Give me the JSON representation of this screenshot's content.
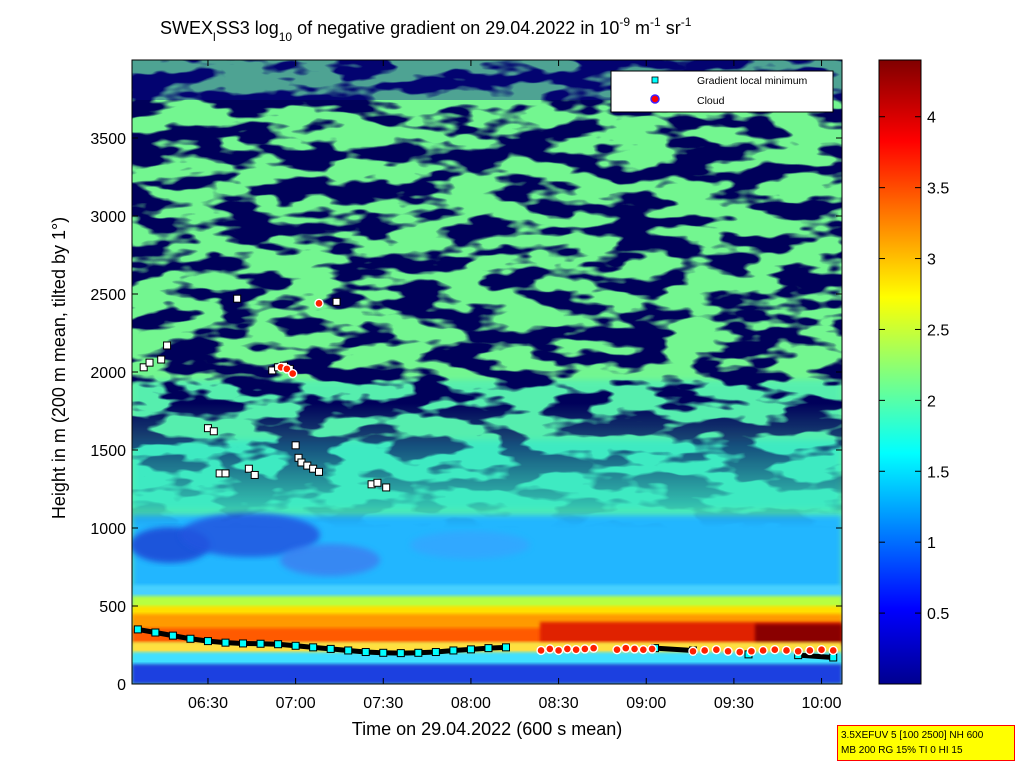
{
  "chart_data": {
    "type": "heatmap",
    "title": {
      "prefix": "SWEX",
      "prefix_sub": "l",
      "main": "SS3 log",
      "log_sub": "10",
      "rest": " of negative gradient on 29.04.2022 in 10",
      "exp1": "-9",
      "unit1": " m",
      "exp2": "-1",
      "unit2": " sr",
      "exp3": "-1"
    },
    "xlabel": "Time on 29.04.2022 (600 s mean)",
    "ylabel": "Height in m (200 m mean, tilted by 1°)",
    "x_ticks": [
      "06:30",
      "07:00",
      "07:30",
      "08:00",
      "08:30",
      "09:00",
      "09:30",
      "10:00"
    ],
    "x_tick_minutes": [
      390,
      420,
      450,
      480,
      510,
      540,
      570,
      600
    ],
    "xlim_minutes": [
      364,
      607
    ],
    "y_ticks": [
      0,
      500,
      1000,
      1500,
      2000,
      2500,
      3000,
      3500
    ],
    "ylim": [
      0,
      4000
    ],
    "colorbar": {
      "ticks": [
        "0.5",
        "1",
        "1.5",
        "2",
        "2.5",
        "3",
        "3.5",
        "4"
      ],
      "tick_values": [
        0.5,
        1,
        1.5,
        2,
        2.5,
        3,
        3.5,
        4
      ],
      "range": [
        0,
        4.4
      ],
      "colormap": "jet"
    },
    "legend": {
      "placement": "top-right",
      "entries": [
        {
          "label": "Gradient local minimum",
          "color": "#00ffff",
          "marker": "square"
        },
        {
          "label": "Cloud",
          "color": "#ff0000",
          "marker": "circle"
        }
      ]
    },
    "series": [
      {
        "name": "Gradient local minimum",
        "points": [
          [
            366,
            350
          ],
          [
            372,
            330
          ],
          [
            378,
            310
          ],
          [
            384,
            290
          ],
          [
            390,
            275
          ],
          [
            396,
            265
          ],
          [
            402,
            260
          ],
          [
            408,
            258
          ],
          [
            414,
            255
          ],
          [
            420,
            245
          ],
          [
            426,
            235
          ],
          [
            432,
            225
          ],
          [
            438,
            215
          ],
          [
            444,
            205
          ],
          [
            450,
            200
          ],
          [
            456,
            198
          ],
          [
            462,
            200
          ],
          [
            468,
            205
          ],
          [
            474,
            215
          ],
          [
            480,
            222
          ],
          [
            486,
            230
          ],
          [
            492,
            235
          ],
          [
            368,
            2030
          ],
          [
            370,
            2060
          ],
          [
            374,
            2080
          ],
          [
            376,
            2170
          ],
          [
            390,
            1640
          ],
          [
            392,
            1620
          ],
          [
            394,
            1350
          ],
          [
            396,
            1350
          ],
          [
            400,
            2470
          ],
          [
            404,
            1380
          ],
          [
            406,
            1340
          ],
          [
            412,
            2010
          ],
          [
            414,
            2030
          ],
          [
            416,
            2040
          ],
          [
            418,
            2020
          ],
          [
            420,
            1530
          ],
          [
            421,
            1450
          ],
          [
            422,
            1420
          ],
          [
            424,
            1400
          ],
          [
            426,
            1380
          ],
          [
            428,
            1360
          ],
          [
            434,
            2450
          ],
          [
            446,
            1280
          ],
          [
            448,
            1290
          ],
          [
            451,
            1260
          ],
          [
            543,
            230
          ],
          [
            556,
            215
          ],
          [
            575,
            190
          ],
          [
            592,
            185
          ],
          [
            604,
            170
          ]
        ]
      },
      {
        "name": "Cloud",
        "points": [
          [
            415,
            2030
          ],
          [
            417,
            2020
          ],
          [
            419,
            1990
          ],
          [
            428,
            2440
          ],
          [
            504,
            215
          ],
          [
            507,
            225
          ],
          [
            510,
            215
          ],
          [
            513,
            225
          ],
          [
            516,
            220
          ],
          [
            519,
            225
          ],
          [
            522,
            230
          ],
          [
            530,
            220
          ],
          [
            533,
            230
          ],
          [
            536,
            225
          ],
          [
            539,
            220
          ],
          [
            542,
            225
          ],
          [
            556,
            210
          ],
          [
            560,
            215
          ],
          [
            564,
            220
          ],
          [
            568,
            210
          ],
          [
            572,
            205
          ],
          [
            576,
            210
          ],
          [
            580,
            215
          ],
          [
            584,
            220
          ],
          [
            588,
            215
          ],
          [
            592,
            210
          ],
          [
            596,
            215
          ],
          [
            600,
            220
          ],
          [
            604,
            215
          ]
        ]
      }
    ],
    "info_box": [
      "3.5XEFUV 5 [100 2500] NH 600",
      "MB 200 RG 15% TI 0 HI 15"
    ]
  }
}
